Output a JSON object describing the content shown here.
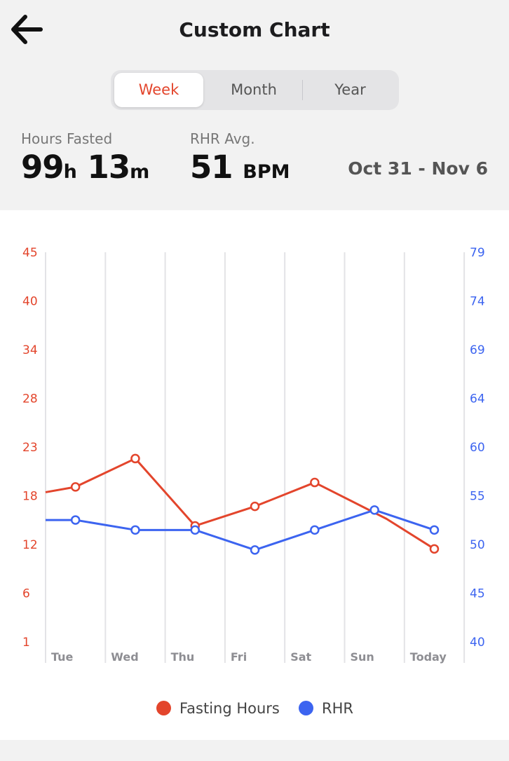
{
  "header": {
    "title": "Custom Chart",
    "tabs": [
      {
        "label": "Week",
        "active": true
      },
      {
        "label": "Month",
        "active": false
      },
      {
        "label": "Year",
        "active": false
      }
    ]
  },
  "stats": {
    "fasted_label": "Hours Fasted",
    "fasted_hours": "99",
    "fasted_h_unit": "h",
    "fasted_minutes": "13",
    "fasted_m_unit": "m",
    "rhr_label": "RHR Avg.",
    "rhr_value": "51",
    "rhr_unit": "BPM",
    "date_range": "Oct 31 - Nov 6"
  },
  "colors": {
    "fasting": "#e3452c",
    "rhr": "#3c64f0",
    "grid": "#e3e3e6"
  },
  "icons": {
    "back": "arrow-left-icon"
  },
  "chart_data": {
    "type": "line",
    "categories": [
      "Tue",
      "Wed",
      "Thu",
      "Fri",
      "Sat",
      "Sun",
      "Today"
    ],
    "left_axis": {
      "ticks": [
        "45",
        "40",
        "34",
        "28",
        "23",
        "18",
        "12",
        "6",
        "1"
      ],
      "ylim": [
        1,
        45
      ]
    },
    "right_axis": {
      "ticks": [
        "79",
        "74",
        "69",
        "64",
        "60",
        "55",
        "50",
        "45",
        "40"
      ],
      "ylim": [
        40,
        79
      ]
    },
    "series": [
      {
        "name": "Fasting Hours",
        "axis": "left",
        "start_value": 17.9,
        "values": [
          18.5,
          21.7,
          14.1,
          16.3,
          19.0,
          null,
          11.5
        ],
        "last_segment_via": 14.9
      },
      {
        "name": "RHR",
        "axis": "right",
        "start_value": 52.2,
        "values": [
          52.2,
          51.2,
          51.2,
          49.2,
          51.2,
          53.2,
          51.2
        ]
      }
    ],
    "grid": true,
    "legend": "bottom"
  }
}
